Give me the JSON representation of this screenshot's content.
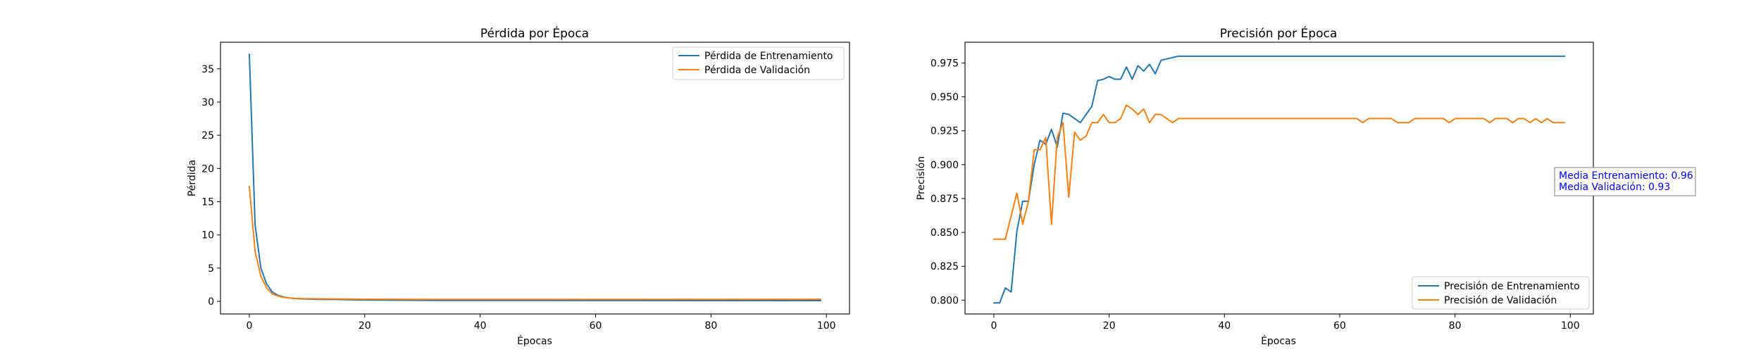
{
  "figure": {
    "colors": {
      "series_1": "#1f77b4",
      "series_2": "#ff7f0e",
      "annotation_text": "#0000ff",
      "axis": "#000000"
    }
  },
  "chart_data": [
    {
      "type": "line",
      "title": "Pérdida por Época",
      "xlabel": "Épocas",
      "ylabel": "Pérdida",
      "xlim": [
        -5,
        104
      ],
      "ylim": [
        -1.9,
        39.0
      ],
      "xticks": [
        0,
        20,
        40,
        60,
        80,
        100
      ],
      "yticks": [
        0,
        5,
        10,
        15,
        20,
        25,
        30,
        35
      ],
      "ytick_labels": [
        "0",
        "5",
        "10",
        "15",
        "20",
        "25",
        "30",
        "35"
      ],
      "grid": false,
      "legend_position": "upper right",
      "series": [
        {
          "name": "Pérdida de Entrenamiento",
          "x": [
            0,
            1,
            2,
            3,
            4,
            5,
            6,
            7,
            8,
            9,
            10,
            12,
            15,
            20,
            30,
            40,
            60,
            80,
            99
          ],
          "y": [
            37.2,
            11.5,
            5.0,
            2.6,
            1.4,
            0.9,
            0.65,
            0.5,
            0.42,
            0.38,
            0.35,
            0.3,
            0.28,
            0.2,
            0.15,
            0.14,
            0.13,
            0.12,
            0.12
          ]
        },
        {
          "name": "Pérdida de Validación",
          "x": [
            0,
            1,
            2,
            3,
            4,
            5,
            6,
            7,
            8,
            9,
            10,
            12,
            15,
            20,
            30,
            40,
            60,
            80,
            99
          ],
          "y": [
            17.3,
            7.5,
            3.8,
            2.0,
            1.1,
            0.8,
            0.6,
            0.5,
            0.45,
            0.42,
            0.4,
            0.38,
            0.36,
            0.32,
            0.3,
            0.3,
            0.3,
            0.3,
            0.32
          ]
        }
      ]
    },
    {
      "type": "line",
      "title": "Precisión por Época",
      "xlabel": "Épocas",
      "ylabel": "Precisión",
      "xlim": [
        -5,
        104
      ],
      "ylim": [
        0.7898,
        0.9903
      ],
      "xticks": [
        0,
        20,
        40,
        60,
        80,
        100
      ],
      "yticks": [
        0.8,
        0.825,
        0.85,
        0.875,
        0.9,
        0.925,
        0.95,
        0.975
      ],
      "ytick_labels": [
        "0.800",
        "0.825",
        "0.850",
        "0.875",
        "0.900",
        "0.925",
        "0.950",
        "0.975"
      ],
      "grid": false,
      "legend_position": "lower right",
      "annotation": {
        "lines": [
          "Media Entrenamiento: 0.96",
          "Media Validación: 0.93"
        ]
      },
      "series": [
        {
          "name": "Precisión de Entrenamiento",
          "x": [
            0,
            1,
            2,
            3,
            4,
            5,
            6,
            7,
            8,
            9,
            10,
            11,
            12,
            13,
            14,
            15,
            16,
            17,
            18,
            19,
            20,
            21,
            22,
            23,
            24,
            25,
            26,
            27,
            28,
            29,
            30,
            31,
            32,
            33,
            34,
            35,
            36,
            37,
            38,
            39,
            40,
            41,
            42,
            43,
            44,
            45,
            46,
            47,
            48,
            49,
            50,
            51,
            52,
            53,
            54,
            55,
            56,
            57,
            58,
            59,
            60,
            61,
            62,
            63,
            64,
            65,
            66,
            67,
            68,
            69,
            70,
            71,
            72,
            73,
            74,
            75,
            76,
            77,
            78,
            79,
            80,
            81,
            82,
            83,
            84,
            85,
            86,
            87,
            88,
            89,
            90,
            91,
            92,
            93,
            94,
            95,
            96,
            97,
            98,
            99
          ],
          "y": [
            0.798,
            0.798,
            0.809,
            0.806,
            0.851,
            0.873,
            0.873,
            0.9,
            0.918,
            0.915,
            0.926,
            0.913,
            0.938,
            0.937,
            0.934,
            0.931,
            0.937,
            0.943,
            0.962,
            0.963,
            0.965,
            0.963,
            0.963,
            0.972,
            0.963,
            0.973,
            0.969,
            0.974,
            0.967,
            0.977,
            0.978,
            0.979,
            0.98,
            0.98,
            0.98,
            0.98,
            0.98,
            0.98,
            0.98,
            0.98,
            0.98,
            0.98,
            0.98,
            0.98,
            0.98,
            0.98,
            0.98,
            0.98,
            0.98,
            0.98,
            0.98,
            0.98,
            0.98,
            0.98,
            0.98,
            0.98,
            0.98,
            0.98,
            0.98,
            0.98,
            0.98,
            0.98,
            0.98,
            0.98,
            0.98,
            0.98,
            0.98,
            0.98,
            0.98,
            0.98,
            0.98,
            0.98,
            0.98,
            0.98,
            0.98,
            0.98,
            0.98,
            0.98,
            0.98,
            0.98,
            0.98,
            0.98,
            0.98,
            0.98,
            0.98,
            0.98,
            0.98,
            0.98,
            0.98,
            0.98,
            0.98,
            0.98,
            0.98,
            0.98,
            0.98,
            0.98,
            0.98,
            0.98,
            0.98,
            0.98
          ]
        },
        {
          "name": "Precisión de Validación",
          "x": [
            0,
            1,
            2,
            3,
            4,
            5,
            6,
            7,
            8,
            9,
            10,
            11,
            12,
            13,
            14,
            15,
            16,
            17,
            18,
            19,
            20,
            21,
            22,
            23,
            24,
            25,
            26,
            27,
            28,
            29,
            30,
            31,
            32,
            33,
            34,
            35,
            36,
            37,
            38,
            39,
            40,
            41,
            42,
            43,
            44,
            45,
            46,
            47,
            48,
            49,
            50,
            51,
            52,
            53,
            54,
            55,
            56,
            57,
            58,
            59,
            60,
            61,
            62,
            63,
            64,
            65,
            66,
            67,
            68,
            69,
            70,
            71,
            72,
            73,
            74,
            75,
            76,
            77,
            78,
            79,
            80,
            81,
            82,
            83,
            84,
            85,
            86,
            87,
            88,
            89,
            90,
            91,
            92,
            93,
            94,
            95,
            96,
            97,
            98,
            99
          ],
          "y": [
            0.845,
            0.845,
            0.845,
            0.862,
            0.879,
            0.856,
            0.873,
            0.911,
            0.911,
            0.92,
            0.856,
            0.92,
            0.931,
            0.876,
            0.924,
            0.918,
            0.921,
            0.931,
            0.931,
            0.937,
            0.931,
            0.931,
            0.934,
            0.944,
            0.941,
            0.937,
            0.941,
            0.931,
            0.937,
            0.937,
            0.934,
            0.931,
            0.934,
            0.934,
            0.934,
            0.934,
            0.934,
            0.934,
            0.934,
            0.934,
            0.934,
            0.934,
            0.934,
            0.934,
            0.934,
            0.934,
            0.934,
            0.934,
            0.934,
            0.934,
            0.934,
            0.934,
            0.934,
            0.934,
            0.934,
            0.934,
            0.934,
            0.934,
            0.934,
            0.934,
            0.934,
            0.934,
            0.934,
            0.934,
            0.931,
            0.934,
            0.934,
            0.934,
            0.934,
            0.934,
            0.931,
            0.931,
            0.931,
            0.934,
            0.934,
            0.934,
            0.934,
            0.934,
            0.934,
            0.931,
            0.934,
            0.934,
            0.934,
            0.934,
            0.934,
            0.934,
            0.931,
            0.934,
            0.934,
            0.934,
            0.931,
            0.934,
            0.934,
            0.931,
            0.934,
            0.931,
            0.934,
            0.931,
            0.931,
            0.931
          ]
        }
      ]
    }
  ]
}
